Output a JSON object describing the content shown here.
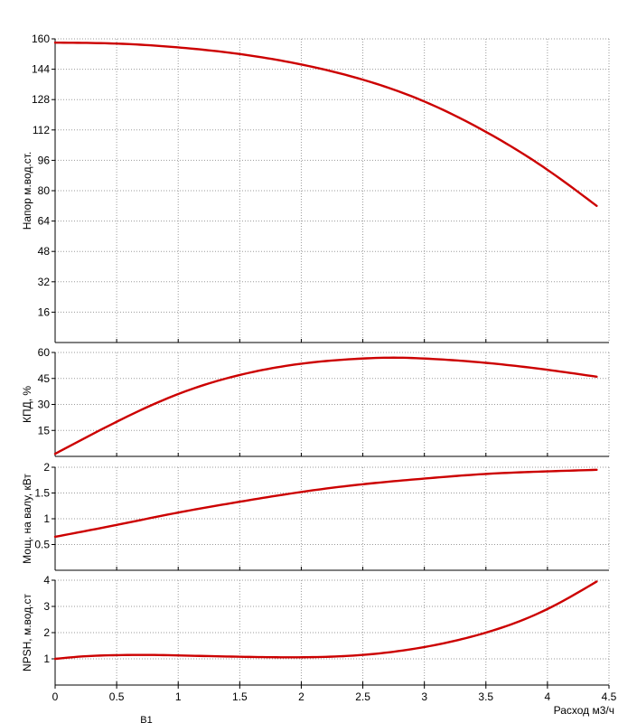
{
  "chart_data": [
    {
      "type": "line",
      "ylabel": "Напор м.вод.ст.",
      "ylim": [
        0,
        160
      ],
      "yticks": [
        16,
        32,
        48,
        64,
        80,
        96,
        112,
        128,
        144,
        160
      ],
      "xlim": [
        0,
        4.5
      ],
      "grid": true,
      "series": [
        {
          "color": "#cc0000",
          "x": [
            0,
            0.5,
            1,
            1.5,
            2,
            2.5,
            3,
            3.5,
            4,
            4.4
          ],
          "y": [
            158,
            157.5,
            155.5,
            152,
            146.5,
            138.5,
            127,
            111,
            91,
            72
          ]
        }
      ]
    },
    {
      "type": "line",
      "ylabel": "КПД, %",
      "ylim": [
        0,
        60
      ],
      "yticks": [
        15,
        30,
        45,
        60
      ],
      "xlim": [
        0,
        4.5
      ],
      "grid": true,
      "series": [
        {
          "color": "#cc0000",
          "x": [
            0,
            0.5,
            1,
            1.5,
            2,
            2.5,
            2.75,
            3,
            3.5,
            4,
            4.4
          ],
          "y": [
            1.5,
            20,
            36,
            47,
            53.5,
            56.5,
            57,
            56.5,
            54,
            50,
            46
          ]
        }
      ]
    },
    {
      "type": "line",
      "ylabel": "Мощ. на валу, кВт",
      "ylim": [
        0,
        2
      ],
      "yticks": [
        0.5,
        1,
        1.5,
        2
      ],
      "xlim": [
        0,
        4.5
      ],
      "grid": true,
      "series": [
        {
          "color": "#cc0000",
          "x": [
            0,
            0.5,
            1,
            1.5,
            2,
            2.5,
            3,
            3.5,
            4,
            4.4
          ],
          "y": [
            0.65,
            0.88,
            1.12,
            1.33,
            1.52,
            1.67,
            1.78,
            1.87,
            1.92,
            1.95
          ]
        }
      ]
    },
    {
      "type": "line",
      "ylabel": "NPSH, м.вод.ст",
      "ylim": [
        0,
        4
      ],
      "yticks": [
        1,
        2,
        3,
        4
      ],
      "xlim": [
        0,
        4.5
      ],
      "xticks": [
        0,
        0.5,
        1,
        1.5,
        2,
        2.5,
        3,
        3.5,
        4,
        4.5
      ],
      "xlabel": "Расход м3/ч",
      "grid": true,
      "series": [
        {
          "color": "#cc0000",
          "x": [
            0,
            0.25,
            0.5,
            0.75,
            1,
            1.5,
            2,
            2.5,
            3,
            3.5,
            4,
            4.4
          ],
          "y": [
            1,
            1.1,
            1.14,
            1.15,
            1.13,
            1.08,
            1.06,
            1.15,
            1.45,
            2.0,
            2.9,
            3.95
          ]
        }
      ]
    }
  ],
  "footer_label": "B1"
}
